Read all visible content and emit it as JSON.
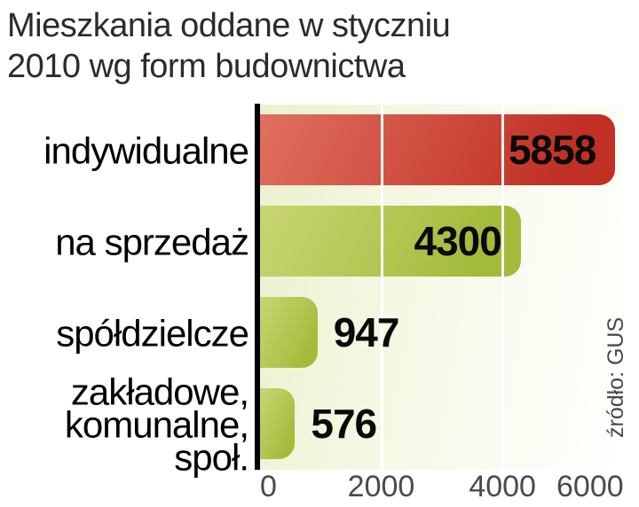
{
  "title": {
    "line1": "Mieszkania oddane w styczniu",
    "line2": "2010 wg form budownictwa"
  },
  "source_note": "źródło: GUS",
  "chart_data": {
    "type": "bar",
    "orientation": "horizontal",
    "title": "Mieszkania oddane w styczniu 2010 wg form budownictwa",
    "categories": [
      "indywidualne",
      "na sprzedaż",
      "spółdzielcze",
      "zakładowe, komunalne, społ."
    ],
    "values": [
      5858,
      4300,
      947,
      576
    ],
    "xlim": [
      0,
      6000
    ],
    "xticks": [
      0,
      2000,
      4000,
      6000
    ],
    "xtick_labels": [
      "0",
      "2000",
      "4000",
      "6000"
    ],
    "grid": "vertical white gridlines at 2000 and 4000, drawn over bars",
    "legend": null,
    "source": "źródło: GUS",
    "rows": [
      {
        "label": "indywidualne",
        "value": 5858,
        "color": "red",
        "value_inside": true
      },
      {
        "label": "na sprzedaż",
        "value": 4300,
        "color": "green",
        "value_inside": true
      },
      {
        "label": "spółdzielcze",
        "value": 947,
        "color": "green",
        "value_inside": false
      },
      {
        "label": "zakładowe,\nkomunalne,\nspoł.",
        "value": 576,
        "color": "green",
        "value_inside": false
      }
    ],
    "colors": {
      "bar_red_light": "#e0705f",
      "bar_red_dark": "#c03024",
      "bar_green_light": "#c9d573",
      "bar_green_dark": "#a2bb3a",
      "plot_bg_left": "#edf0d0",
      "plot_bg_right": "#ffffff",
      "gridline": "#ffffff",
      "axis": "#000000",
      "value_text": "#0a0a0a",
      "tick_text": "#4a4a4a",
      "title_text": "#2b2b2b"
    }
  }
}
